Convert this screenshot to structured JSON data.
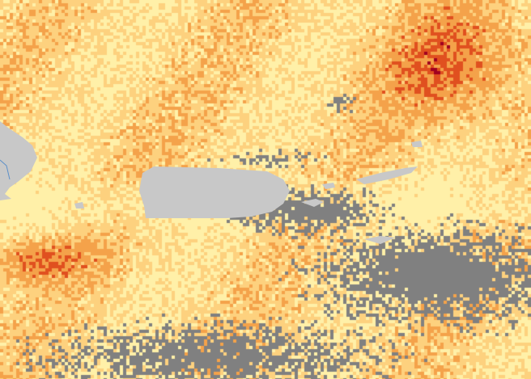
{
  "map": {
    "type": "raster-heatmap",
    "colors": {
      "low": "#fff0a8",
      "mid": "#fdd17e",
      "high": "#f4a24a",
      "very_high": "#e0501f",
      "extreme": "#a00020",
      "no_data": "#808080",
      "land": "#c8c8c8",
      "water_line": "#5b8fc8"
    },
    "features": [
      "puerto-rico-landmass",
      "hispaniola-east-coast",
      "vieques",
      "culebra",
      "virgin-islands",
      "st-croix",
      "no-data-cloud-areas"
    ]
  }
}
